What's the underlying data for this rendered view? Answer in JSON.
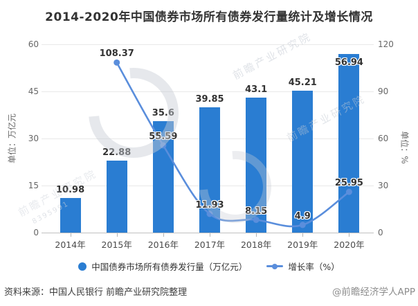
{
  "title": "2014-2020年中国债券市场所有债券发行量统计及增长情况",
  "chart_data": {
    "type": "bar+line combo",
    "categories": [
      "2014年",
      "2015年",
      "2016年",
      "2017年",
      "2018年",
      "2019年",
      "2020年"
    ],
    "series": [
      {
        "name": "中国债券市场所有债券发行量（万亿元）",
        "type": "bar",
        "axis": "left",
        "values": [
          10.98,
          22.88,
          35.6,
          39.85,
          43.1,
          45.21,
          56.94
        ]
      },
      {
        "name": "增长率（%）",
        "type": "line",
        "axis": "right",
        "values": [
          null,
          108.37,
          55.59,
          11.93,
          8.15,
          4.9,
          25.95
        ]
      }
    ],
    "left_axis": {
      "title": "单位：万亿元",
      "ticks": [
        0,
        15,
        30,
        45,
        60
      ],
      "min": 0,
      "max": 60
    },
    "right_axis": {
      "title": "单位：%",
      "ticks": [
        0,
        30,
        60,
        90,
        120
      ],
      "min": 0,
      "max": 120
    },
    "grid": "horizontal gridlines on",
    "legend_position": "bottom",
    "value_labels": "shown above bars and line points"
  },
  "legend": {
    "bar_label": "中国债券市场所有债券发行量（万亿元）",
    "line_label": "增长率（%）"
  },
  "footer": {
    "source": "资料来源：中国人民银行 前瞻产业研究院整理",
    "credit": "@前瞻经济学人APP"
  },
  "watermark": {
    "text": "前瞻产业研究院",
    "digits": "8395991"
  },
  "colors": {
    "bar": "#2A7DD2",
    "line": "#5A8EDC",
    "title": "#333333",
    "axis_text": "#666666",
    "value_label": "#333333",
    "grid": "#e8e8e8",
    "axis_line": "#c0c0c0"
  }
}
